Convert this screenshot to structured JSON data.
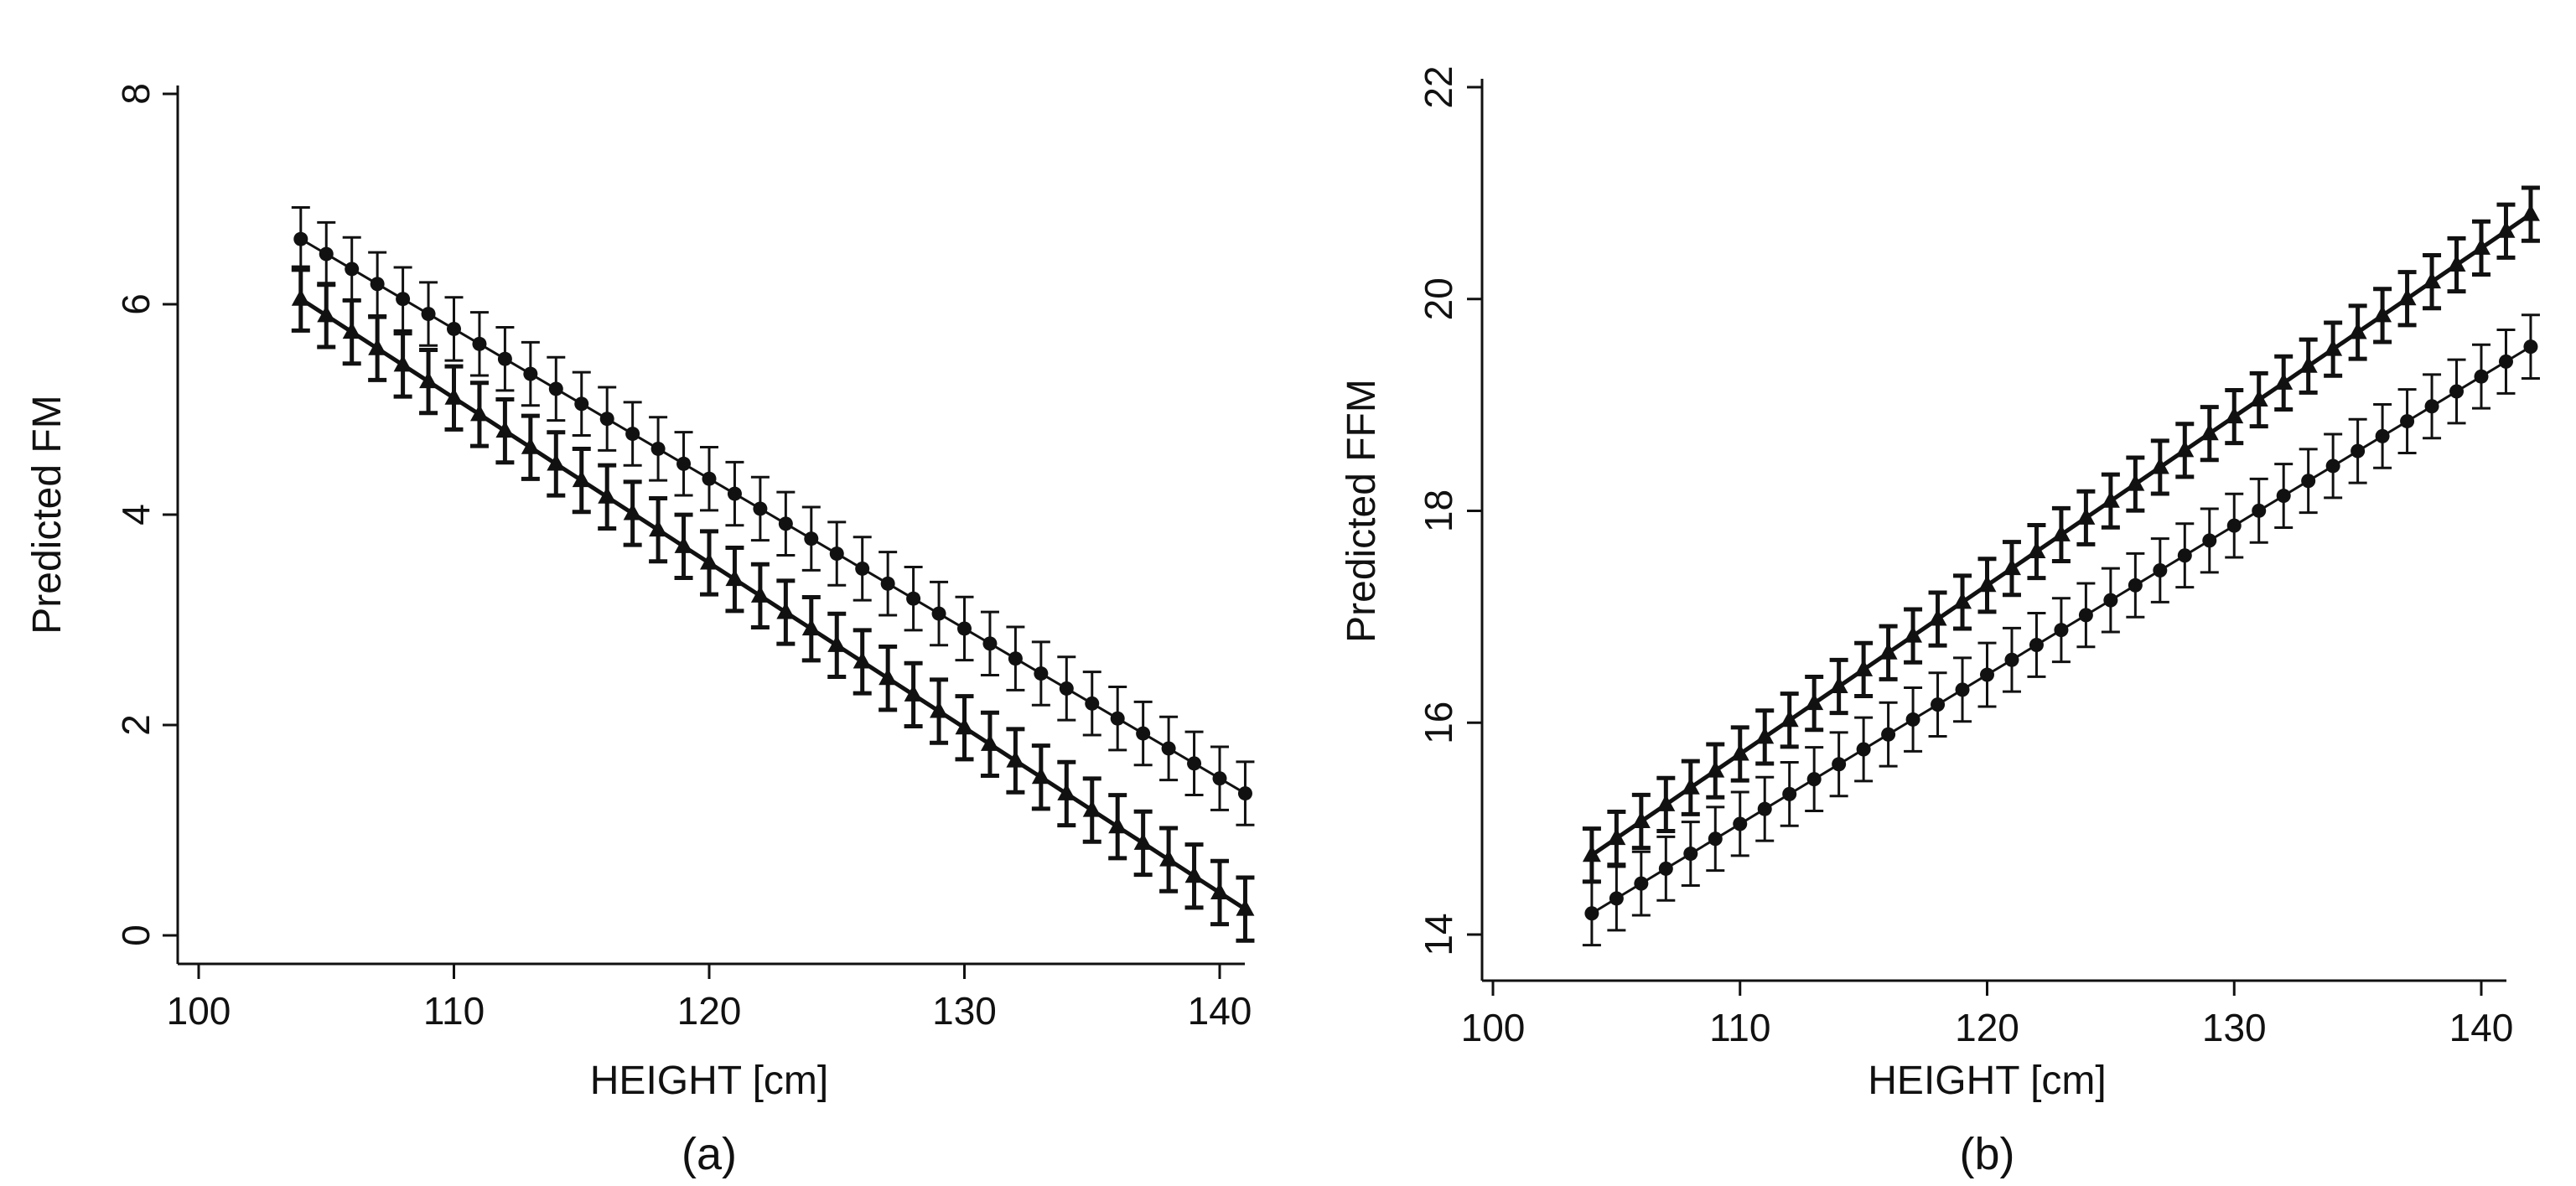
{
  "chart_data": [
    {
      "type": "line",
      "panel_label": "(a)",
      "xlabel": "HEIGHT [cm]",
      "ylabel": "Predicted FM",
      "xlim": [
        100,
        140
      ],
      "ylim": [
        0,
        8
      ],
      "xticks": [
        100,
        110,
        120,
        130,
        140
      ],
      "yticks": [
        0,
        2,
        4,
        6,
        8
      ],
      "x_start": 104,
      "x_end": 141,
      "x_step": 1,
      "series": [
        {
          "name": "circle series",
          "marker": "circle",
          "y_start": 6.62,
          "y_end": 1.35,
          "ci_halfwidth": 0.3
        },
        {
          "name": "triangle series",
          "marker": "triangle",
          "y_start": 6.05,
          "y_end": 0.25,
          "ci_halfwidth": 0.3
        }
      ]
    },
    {
      "type": "line",
      "panel_label": "(b)",
      "xlabel": "HEIGHT [cm]",
      "ylabel": "Predicted FFM",
      "xlim": [
        100,
        140
      ],
      "ylim": [
        14,
        22
      ],
      "xticks": [
        100,
        110,
        120,
        130,
        140
      ],
      "yticks": [
        14,
        16,
        18,
        20,
        22
      ],
      "x_start": 104,
      "x_end": 142,
      "x_step": 1,
      "series": [
        {
          "name": "circle series",
          "marker": "circle",
          "y_start": 14.2,
          "y_end": 19.55,
          "ci_halfwidth": 0.3
        },
        {
          "name": "triangle series",
          "marker": "triangle",
          "y_start": 14.75,
          "y_end": 20.8,
          "ci_halfwidth": 0.25
        }
      ]
    }
  ]
}
